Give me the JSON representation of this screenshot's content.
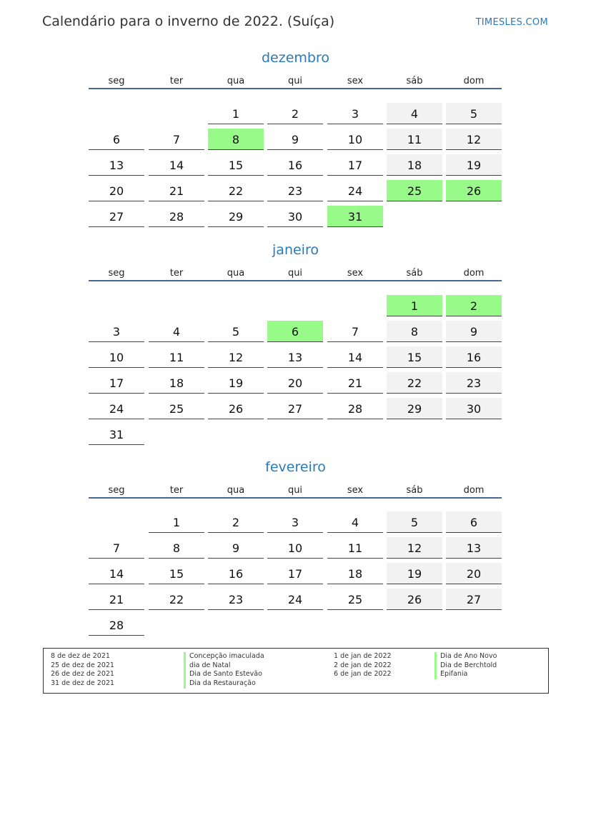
{
  "header": {
    "title": "Calendário para o inverno de 2022. (Suíça)",
    "brand": "TIMESLES.COM"
  },
  "colors": {
    "accent": "#2a7ab8",
    "holiday": "#98fa88",
    "weekend": "#f2f2f2",
    "rule": "#4a6597"
  },
  "weekdays": [
    "seg",
    "ter",
    "qua",
    "qui",
    "sex",
    "sáb",
    "dom"
  ],
  "months": [
    {
      "name": "dezembro",
      "weeks": [
        [
          null,
          null,
          1,
          2,
          3,
          4,
          5
        ],
        [
          6,
          7,
          8,
          9,
          10,
          11,
          12
        ],
        [
          13,
          14,
          15,
          16,
          17,
          18,
          19
        ],
        [
          20,
          21,
          22,
          23,
          24,
          25,
          26
        ],
        [
          27,
          28,
          29,
          30,
          31,
          null,
          null
        ]
      ],
      "holidays": [
        8,
        25,
        26,
        31
      ]
    },
    {
      "name": "janeiro",
      "weeks": [
        [
          null,
          null,
          null,
          null,
          null,
          1,
          2
        ],
        [
          3,
          4,
          5,
          6,
          7,
          8,
          9
        ],
        [
          10,
          11,
          12,
          13,
          14,
          15,
          16
        ],
        [
          17,
          18,
          19,
          20,
          21,
          22,
          23
        ],
        [
          24,
          25,
          26,
          27,
          28,
          29,
          30
        ],
        [
          31,
          null,
          null,
          null,
          null,
          null,
          null
        ]
      ],
      "holidays": [
        1,
        2,
        6
      ]
    },
    {
      "name": "fevereiro",
      "weeks": [
        [
          null,
          1,
          2,
          3,
          4,
          5,
          6
        ],
        [
          7,
          8,
          9,
          10,
          11,
          12,
          13
        ],
        [
          14,
          15,
          16,
          17,
          18,
          19,
          20
        ],
        [
          21,
          22,
          23,
          24,
          25,
          26,
          27
        ],
        [
          28,
          null,
          null,
          null,
          null,
          null,
          null
        ]
      ],
      "holidays": []
    }
  ],
  "legend": {
    "col1_dates": [
      "8 de dez de 2021",
      "25 de dez de 2021",
      "26 de dez de 2021",
      "31 de dez de 2021"
    ],
    "col1_names": [
      "Concepção imaculada",
      "dia de Natal",
      "Dia de Santo Estevão",
      "Dia da Restauração"
    ],
    "col2_dates": [
      "1 de jan de 2022",
      "2 de jan de 2022",
      "6 de jan de 2022"
    ],
    "col2_names": [
      "Dia de Ano Novo",
      "Dia de Berchtold",
      "Epifania"
    ]
  }
}
